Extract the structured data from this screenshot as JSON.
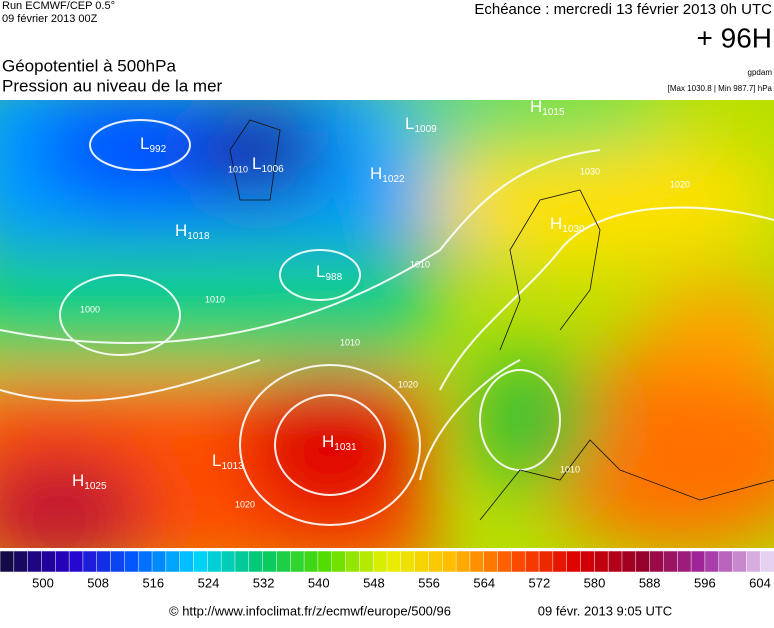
{
  "header": {
    "run": "Run ECMWF/CEP 0.5°",
    "date": "09 février 2013 00Z",
    "valid": "Echéance : mercredi 13 février 2013 0h UTC",
    "lead": "+ 96H",
    "title1": "Géopotentiel à 500hPa",
    "title2": "Pression au niveau de la mer",
    "source": "gpdam",
    "range": "[Max 1030.8 | Min 987.7] hPa"
  },
  "centers": [
    {
      "letter": "L",
      "value": "992"
    },
    {
      "letter": "L",
      "value": "1006"
    },
    {
      "letter": "H",
      "value": "1022"
    },
    {
      "letter": "H",
      "value": "1018"
    },
    {
      "letter": "L",
      "value": "988"
    },
    {
      "letter": "H",
      "value": "1031"
    },
    {
      "letter": "L",
      "value": "1013"
    },
    {
      "letter": "H",
      "value": "1025"
    },
    {
      "letter": "H",
      "value": "1015"
    },
    {
      "letter": "H",
      "value": "1030"
    },
    {
      "letter": "L",
      "value": "1009"
    }
  ],
  "isobars": [
    "1010",
    "1010",
    "1010",
    "1000",
    "1020",
    "1020",
    "1030",
    "1020",
    "1010",
    "1010"
  ],
  "colorbar": {
    "ticks": [
      500,
      508,
      516,
      524,
      532,
      540,
      548,
      556,
      564,
      572,
      580,
      588,
      596,
      604
    ]
  },
  "footer": {
    "url": "© http://www.infoclimat.fr/z/ecmwf/europe/500/96",
    "time": "09 févr. 2013  9:05 UTC"
  }
}
